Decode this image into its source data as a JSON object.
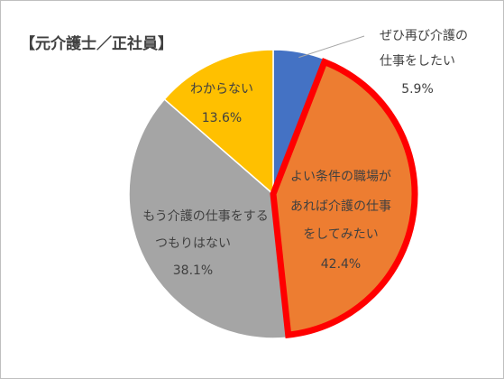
{
  "chart_data": {
    "type": "pie",
    "title": "【元介護士／正社員】",
    "start_angle_deg": 0,
    "direction": "clockwise",
    "highlighted_slice": 1,
    "slices": [
      {
        "label_lines": [
          "ぜひ再び介護の",
          "仕事をしたい"
        ],
        "value": 5.9,
        "value_label": "5.9%",
        "color": "#4472C4"
      },
      {
        "label_lines": [
          "よい条件の職場が",
          "あれば介護の仕事",
          "をしてみたい"
        ],
        "value": 42.4,
        "value_label": "42.4%",
        "color": "#ED7D31",
        "outline": "#FF0000"
      },
      {
        "label_lines": [
          "もう介護の仕事をする",
          "つもりはない"
        ],
        "value": 38.1,
        "value_label": "38.1%",
        "color": "#A5A5A5"
      },
      {
        "label_lines": [
          "わからない"
        ],
        "value": 13.6,
        "value_label": "13.6%",
        "color": "#FFC000"
      }
    ]
  }
}
